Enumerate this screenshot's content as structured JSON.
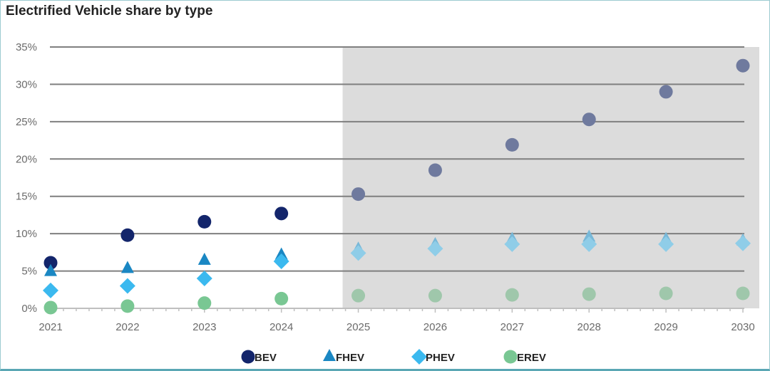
{
  "chart_data": {
    "type": "scatter",
    "title": "Electrified Vehicle share by type",
    "x": [
      2021,
      2022,
      2023,
      2024,
      2025,
      2026,
      2027,
      2028,
      2029,
      2030
    ],
    "forecast_start": 2025,
    "ylim": [
      0,
      35
    ],
    "yticks": [
      "0%",
      "5%",
      "10%",
      "15%",
      "20%",
      "25%",
      "30%",
      "35%"
    ],
    "ytick_values": [
      0,
      5,
      10,
      15,
      20,
      25,
      30,
      35
    ],
    "grid": true,
    "legend_position": "bottom",
    "series": [
      {
        "name": "BEV",
        "marker": "circle",
        "color": "#13256b",
        "forecast_color": "#6f7a9e",
        "values": [
          6.1,
          9.8,
          11.6,
          12.7,
          15.3,
          18.5,
          21.9,
          25.3,
          29.0,
          32.5
        ]
      },
      {
        "name": "FHEV",
        "marker": "triangle",
        "color": "#1a87c3",
        "forecast_color": "#78b8d8",
        "values": [
          4.9,
          5.3,
          6.4,
          7.1,
          7.9,
          8.5,
          9.2,
          9.5,
          9.2,
          9.0
        ]
      },
      {
        "name": "PHEV",
        "marker": "diamond",
        "color": "#3bb9ef",
        "forecast_color": "#8fcde8",
        "values": [
          2.4,
          3.0,
          4.0,
          6.3,
          7.4,
          8.0,
          8.6,
          8.6,
          8.6,
          8.7
        ]
      },
      {
        "name": "EREV",
        "marker": "circle",
        "color": "#79c793",
        "forecast_color": "#9fc7ab",
        "values": [
          0.1,
          0.3,
          0.7,
          1.3,
          1.7,
          1.7,
          1.8,
          1.9,
          2.0,
          2.0
        ]
      }
    ]
  }
}
